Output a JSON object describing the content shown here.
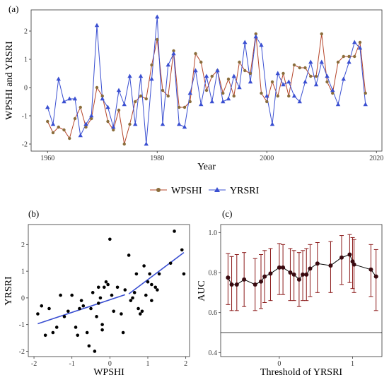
{
  "colors": {
    "wpshi": "#8a6d3b",
    "wpshi_line": "#b5452a",
    "yrsri": "#3a4fd1",
    "scatter_point": "#000000",
    "fit_line": "#3a4fd1",
    "auc_line": "#000000",
    "auc_point": "#3a0a10",
    "errorbar": "#8b1a1a",
    "reference_line": "#000000"
  },
  "chart_data": [
    {
      "panel_label": "(a)",
      "type": "line",
      "xlabel": "Year",
      "ylabel": "WPSHI and YRSRI",
      "xlim": [
        1957,
        2021
      ],
      "ylim": [
        -2.25,
        2.75
      ],
      "xticks": [
        1960,
        1980,
        2000,
        2020
      ],
      "yticks": [
        -2,
        -1,
        0,
        1,
        2
      ],
      "legend_position": "bottom",
      "x": [
        1960,
        1961,
        1962,
        1963,
        1964,
        1965,
        1966,
        1967,
        1968,
        1969,
        1970,
        1971,
        1972,
        1973,
        1974,
        1975,
        1976,
        1977,
        1978,
        1979,
        1980,
        1981,
        1982,
        1983,
        1984,
        1985,
        1986,
        1987,
        1988,
        1989,
        1990,
        1991,
        1992,
        1993,
        1994,
        1995,
        1996,
        1997,
        1998,
        1999,
        2000,
        2001,
        2002,
        2003,
        2004,
        2005,
        2006,
        2007,
        2008,
        2009,
        2010,
        2011,
        2012,
        2013,
        2014,
        2015,
        2016,
        2017,
        2018
      ],
      "series": [
        {
          "name": "WPSHI",
          "marker": "circle",
          "values": [
            -1.2,
            -1.6,
            -1.4,
            -1.5,
            -1.8,
            -1.1,
            -0.7,
            -1.4,
            -1.1,
            0.0,
            -0.3,
            -1.2,
            -1.5,
            -0.8,
            -2.0,
            -1.3,
            -0.5,
            -0.3,
            -0.4,
            0.8,
            1.7,
            -0.1,
            -0.3,
            1.3,
            -0.7,
            -0.7,
            -0.5,
            1.2,
            0.9,
            -0.1,
            0.4,
            0.6,
            -0.2,
            0.3,
            -0.3,
            0.9,
            0.6,
            0.5,
            1.9,
            -0.2,
            -0.5,
            0.2,
            -0.3,
            0.5,
            -0.3,
            0.8,
            0.7,
            0.7,
            0.4,
            0.4,
            1.9,
            0.2,
            -0.2,
            0.9,
            1.1,
            1.1,
            1.1,
            1.6,
            -0.2
          ]
        },
        {
          "name": "YRSRI",
          "marker": "triangle",
          "values": [
            -0.7,
            -1.3,
            0.3,
            -0.5,
            -0.4,
            -0.4,
            -1.7,
            -1.3,
            -1.0,
            2.2,
            -0.4,
            -0.7,
            -1.4,
            -0.1,
            -0.6,
            0.4,
            -1.3,
            0.4,
            -2.0,
            0.3,
            2.5,
            -1.3,
            0.8,
            1.2,
            -1.3,
            -1.4,
            -0.2,
            0.6,
            -0.6,
            0.4,
            -0.5,
            0.6,
            -0.5,
            -0.4,
            0.4,
            0.0,
            1.6,
            0.2,
            1.8,
            1.5,
            -0.3,
            -1.3,
            0.5,
            0.1,
            0.2,
            -0.3,
            -0.5,
            0.2,
            0.9,
            0.1,
            0.9,
            0.4,
            -0.1,
            -0.6,
            0.3,
            0.9,
            1.6,
            1.4,
            -0.6
          ]
        }
      ]
    },
    {
      "panel_label": "(b)",
      "type": "scatter",
      "xlabel": "WPSHI",
      "ylabel": "YRSRI",
      "xlim": [
        -2.15,
        2.1
      ],
      "ylim": [
        -2.2,
        2.75
      ],
      "xticks": [
        -2,
        -1,
        0,
        1,
        2
      ],
      "yticks": [
        -2,
        -1,
        0,
        1,
        2
      ],
      "points": [
        [
          -1.9,
          -0.6
        ],
        [
          -1.8,
          -0.3
        ],
        [
          -1.7,
          -1.4
        ],
        [
          -1.6,
          -0.4
        ],
        [
          -1.5,
          -1.3
        ],
        [
          -1.4,
          -1.1
        ],
        [
          -1.3,
          0.1
        ],
        [
          -1.2,
          -0.7
        ],
        [
          -1.1,
          -0.5
        ],
        [
          -1.0,
          0.1
        ],
        [
          -0.9,
          -1.1
        ],
        [
          -0.85,
          -1.4
        ],
        [
          -0.8,
          -0.4
        ],
        [
          -0.75,
          -0.1
        ],
        [
          -0.7,
          -0.3
        ],
        [
          -0.6,
          -1.3
        ],
        [
          -0.55,
          -1.8
        ],
        [
          -0.5,
          -0.4
        ],
        [
          -0.45,
          0.2
        ],
        [
          -0.4,
          -2.0
        ],
        [
          -0.35,
          -0.7
        ],
        [
          -0.3,
          0.4
        ],
        [
          -0.3,
          -0.2
        ],
        [
          -0.25,
          0.0
        ],
        [
          -0.2,
          -1.0
        ],
        [
          -0.2,
          -1.2
        ],
        [
          -0.15,
          0.4
        ],
        [
          -0.1,
          0.6
        ],
        [
          -0.05,
          0.5
        ],
        [
          0.0,
          2.2
        ],
        [
          0.05,
          0.1
        ],
        [
          0.1,
          -0.5
        ],
        [
          0.2,
          0.4
        ],
        [
          0.3,
          -0.6
        ],
        [
          0.35,
          -1.3
        ],
        [
          0.4,
          0.3
        ],
        [
          0.5,
          1.6
        ],
        [
          0.55,
          -0.1
        ],
        [
          0.6,
          0.0
        ],
        [
          0.65,
          0.2
        ],
        [
          0.7,
          0.9
        ],
        [
          0.75,
          -0.4
        ],
        [
          0.8,
          -0.6
        ],
        [
          0.85,
          -0.5
        ],
        [
          0.9,
          1.2
        ],
        [
          0.95,
          0.1
        ],
        [
          1.0,
          0.6
        ],
        [
          1.05,
          0.9
        ],
        [
          1.1,
          -0.1
        ],
        [
          1.1,
          0.5
        ],
        [
          1.2,
          0.4
        ],
        [
          1.25,
          0.3
        ],
        [
          1.3,
          0.9
        ],
        [
          1.6,
          1.3
        ],
        [
          1.7,
          2.5
        ],
        [
          1.9,
          1.8
        ],
        [
          1.95,
          0.9
        ]
      ],
      "fit_lines": [
        {
          "x": [
            -1.9,
            0.4
          ],
          "y": [
            -0.97,
            0.12
          ]
        },
        {
          "x": [
            0.5,
            1.95
          ],
          "y": [
            0.15,
            1.7
          ]
        }
      ]
    },
    {
      "panel_label": "(c)",
      "type": "line",
      "xlabel": "Threshold of YRSRI",
      "ylabel": "AUC",
      "xlim": [
        -0.8,
        1.4
      ],
      "ylim": [
        0.38,
        1.04
      ],
      "xticks": [
        0,
        1
      ],
      "yticks": [
        0.4,
        0.6,
        0.8,
        1.0
      ],
      "reference_y": 0.5,
      "points": [
        {
          "x": -0.7,
          "y": 0.775,
          "lo": 0.64,
          "hi": 0.895
        },
        {
          "x": -0.65,
          "y": 0.74,
          "lo": 0.61,
          "hi": 0.88
        },
        {
          "x": -0.58,
          "y": 0.74,
          "lo": 0.61,
          "hi": 0.89
        },
        {
          "x": -0.48,
          "y": 0.765,
          "lo": 0.63,
          "hi": 0.9
        },
        {
          "x": -0.33,
          "y": 0.74,
          "lo": 0.61,
          "hi": 0.87
        },
        {
          "x": -0.25,
          "y": 0.755,
          "lo": 0.62,
          "hi": 0.89
        },
        {
          "x": -0.2,
          "y": 0.78,
          "lo": 0.65,
          "hi": 0.91
        },
        {
          "x": -0.12,
          "y": 0.795,
          "lo": 0.66,
          "hi": 0.92
        },
        {
          "x": 0.0,
          "y": 0.825,
          "lo": 0.69,
          "hi": 0.945
        },
        {
          "x": 0.05,
          "y": 0.825,
          "lo": 0.69,
          "hi": 0.94
        },
        {
          "x": 0.15,
          "y": 0.8,
          "lo": 0.66,
          "hi": 0.92
        },
        {
          "x": 0.2,
          "y": 0.79,
          "lo": 0.66,
          "hi": 0.91
        },
        {
          "x": 0.27,
          "y": 0.765,
          "lo": 0.63,
          "hi": 0.9
        },
        {
          "x": 0.32,
          "y": 0.79,
          "lo": 0.66,
          "hi": 0.91
        },
        {
          "x": 0.37,
          "y": 0.79,
          "lo": 0.66,
          "hi": 0.92
        },
        {
          "x": 0.42,
          "y": 0.82,
          "lo": 0.68,
          "hi": 0.94
        },
        {
          "x": 0.52,
          "y": 0.845,
          "lo": 0.7,
          "hi": 0.95
        },
        {
          "x": 0.7,
          "y": 0.835,
          "lo": 0.7,
          "hi": 0.955
        },
        {
          "x": 0.85,
          "y": 0.875,
          "lo": 0.74,
          "hi": 0.985
        },
        {
          "x": 0.96,
          "y": 0.89,
          "lo": 0.75,
          "hi": 0.99
        },
        {
          "x": 1.0,
          "y": 0.855,
          "lo": 0.72,
          "hi": 0.975
        },
        {
          "x": 1.02,
          "y": 0.84,
          "lo": 0.7,
          "hi": 0.965
        },
        {
          "x": 1.25,
          "y": 0.815,
          "lo": 0.68,
          "hi": 0.94
        },
        {
          "x": 1.32,
          "y": 0.78,
          "lo": 0.61,
          "hi": 0.915
        }
      ]
    }
  ]
}
